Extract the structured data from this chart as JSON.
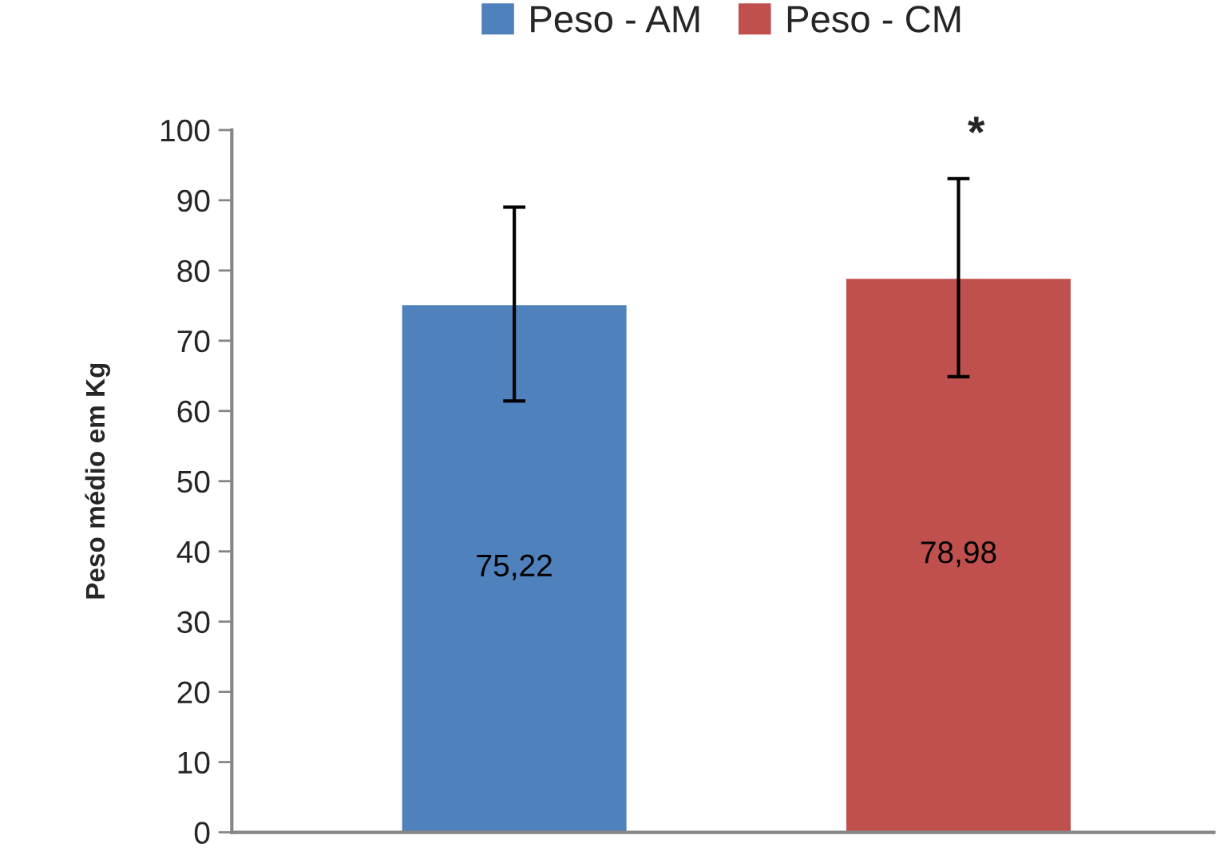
{
  "chart_data": {
    "type": "bar",
    "ylabel": "Peso médio em Kg",
    "categories": [
      null,
      null
    ],
    "series": [
      {
        "name": "Peso - AM",
        "color": "#4f81bd",
        "values": [
          75.22,
          null
        ],
        "errors": [
          13.8,
          null
        ],
        "value_labels": [
          "75,22",
          null
        ]
      },
      {
        "name": "Peso - CM",
        "color": "#c0504d",
        "values": [
          null,
          78.98
        ],
        "errors": [
          null,
          14.1
        ],
        "value_labels": [
          null,
          "78,98"
        ]
      }
    ],
    "annotations": [
      "*"
    ],
    "ylim": [
      0,
      100
    ],
    "yticks": [
      0,
      10,
      20,
      30,
      40,
      50,
      60,
      70,
      80,
      90,
      100
    ],
    "grid": false,
    "legend": "top"
  }
}
